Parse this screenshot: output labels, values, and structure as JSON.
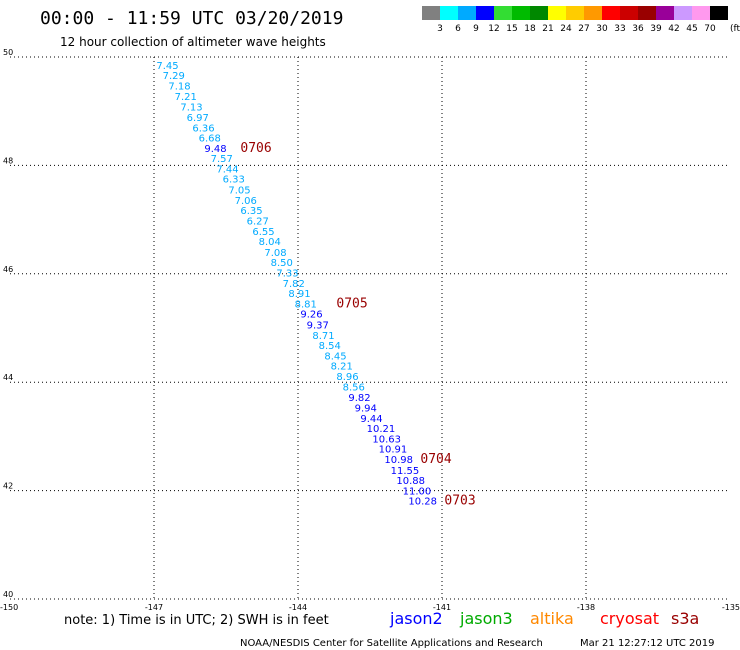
{
  "chart_data": {
    "type": "scatter",
    "title": "00:00 - 11:59 UTC 03/20/2019",
    "subtitle": "12 hour collection of altimeter wave heights",
    "x_ticks": [
      "-150",
      "-147",
      "-144",
      "-141",
      "-138",
      "-135"
    ],
    "y_ticks": [
      "40",
      "42",
      "44",
      "46",
      "48",
      "50"
    ],
    "xlim": [
      -150,
      -135
    ],
    "ylim": [
      40,
      50
    ],
    "grid": true,
    "color_scale": {
      "labels": [
        "3",
        "6",
        "9",
        "12",
        "15",
        "18",
        "21",
        "24",
        "27",
        "30",
        "33",
        "36",
        "39",
        "42",
        "45",
        "70"
      ],
      "unit": "(ft)",
      "colors": [
        "#808080",
        "#00ffff",
        "#00aaff",
        "#0000ff",
        "#33dd33",
        "#00bb00",
        "#008800",
        "#ffff00",
        "#ffcc00",
        "#ff9900",
        "#ff0000",
        "#cc0000",
        "#990000",
        "#990099",
        "#cc99ff",
        "#ff99ee",
        "#000000"
      ]
    },
    "series": [
      {
        "name": "jason2",
        "color": "#0000ff",
        "points": []
      },
      {
        "name": "jason3",
        "color": "#00aa00",
        "points": []
      },
      {
        "name": "altika",
        "color": "#ff8800",
        "points": []
      },
      {
        "name": "cryosat",
        "color": "#ff0000",
        "points": []
      },
      {
        "name": "s3a",
        "color": "#990000",
        "points": [
          {
            "lon": -146.95,
            "lat": 49.78,
            "label": "7.45",
            "c": "#00aaff"
          },
          {
            "lon": -146.82,
            "lat": 49.59,
            "label": "7.29",
            "c": "#00aaff"
          },
          {
            "lon": -146.7,
            "lat": 49.4,
            "label": "7.18",
            "c": "#00aaff"
          },
          {
            "lon": -146.57,
            "lat": 49.21,
            "label": "7.21",
            "c": "#00aaff"
          },
          {
            "lon": -146.45,
            "lat": 49.01,
            "label": "7.13",
            "c": "#00aaff"
          },
          {
            "lon": -146.32,
            "lat": 48.82,
            "label": "6.97",
            "c": "#00aaff"
          },
          {
            "lon": -146.2,
            "lat": 48.63,
            "label": "6.36",
            "c": "#00aaff"
          },
          {
            "lon": -146.07,
            "lat": 48.44,
            "label": "6.68",
            "c": "#00aaff"
          },
          {
            "lon": -145.95,
            "lat": 48.25,
            "label": "9.48",
            "c": "#0000ff"
          },
          {
            "lon": -145.82,
            "lat": 48.06,
            "label": "7.57",
            "c": "#00aaff"
          },
          {
            "lon": -145.7,
            "lat": 47.87,
            "label": "7.44",
            "c": "#00aaff"
          },
          {
            "lon": -145.57,
            "lat": 47.68,
            "label": "6.33",
            "c": "#00aaff"
          },
          {
            "lon": -145.45,
            "lat": 47.48,
            "label": "7.05",
            "c": "#00aaff"
          },
          {
            "lon": -145.32,
            "lat": 47.29,
            "label": "7.06",
            "c": "#00aaff"
          },
          {
            "lon": -145.2,
            "lat": 47.1,
            "label": "6.35",
            "c": "#00aaff"
          },
          {
            "lon": -145.07,
            "lat": 46.91,
            "label": "6.27",
            "c": "#00aaff"
          },
          {
            "lon": -144.95,
            "lat": 46.72,
            "label": "6.55",
            "c": "#00aaff"
          },
          {
            "lon": -144.82,
            "lat": 46.53,
            "label": "8.04",
            "c": "#00aaff"
          },
          {
            "lon": -144.7,
            "lat": 46.33,
            "label": "7.08",
            "c": "#00aaff"
          },
          {
            "lon": -144.57,
            "lat": 46.14,
            "label": "8.50",
            "c": "#00aaff"
          },
          {
            "lon": -144.45,
            "lat": 45.95,
            "label": "7.33",
            "c": "#00aaff"
          },
          {
            "lon": -144.32,
            "lat": 45.76,
            "label": "7.82",
            "c": "#00aaff"
          },
          {
            "lon": -144.2,
            "lat": 45.57,
            "label": "8.91",
            "c": "#00aaff"
          },
          {
            "lon": -144.07,
            "lat": 45.38,
            "label": "8.81",
            "c": "#00aaff"
          },
          {
            "lon": -143.95,
            "lat": 45.19,
            "label": "9.26",
            "c": "#0000ff"
          },
          {
            "lon": -143.82,
            "lat": 44.99,
            "label": "9.37",
            "c": "#0000ff"
          },
          {
            "lon": -143.7,
            "lat": 44.8,
            "label": "8.71",
            "c": "#00aaff"
          },
          {
            "lon": -143.57,
            "lat": 44.61,
            "label": "8.54",
            "c": "#00aaff"
          },
          {
            "lon": -143.45,
            "lat": 44.42,
            "label": "8.45",
            "c": "#00aaff"
          },
          {
            "lon": -143.32,
            "lat": 44.23,
            "label": "8.21",
            "c": "#00aaff"
          },
          {
            "lon": -143.2,
            "lat": 44.04,
            "label": "8.96",
            "c": "#00aaff"
          },
          {
            "lon": -143.07,
            "lat": 43.85,
            "label": "8.56",
            "c": "#00aaff"
          },
          {
            "lon": -142.95,
            "lat": 43.65,
            "label": "9.82",
            "c": "#0000ff"
          },
          {
            "lon": -142.82,
            "lat": 43.46,
            "label": "9.94",
            "c": "#0000ff"
          },
          {
            "lon": -142.7,
            "lat": 43.27,
            "label": "9.44",
            "c": "#0000ff"
          },
          {
            "lon": -142.57,
            "lat": 43.08,
            "label": "10.21",
            "c": "#0000ff"
          },
          {
            "lon": -142.45,
            "lat": 42.89,
            "label": "10.63",
            "c": "#0000ff"
          },
          {
            "lon": -142.32,
            "lat": 42.7,
            "label": "10.91",
            "c": "#0000ff"
          },
          {
            "lon": -142.2,
            "lat": 42.51,
            "label": "10.98",
            "c": "#0000ff"
          },
          {
            "lon": -142.07,
            "lat": 42.31,
            "label": "11.55",
            "c": "#0000ff"
          },
          {
            "lon": -141.95,
            "lat": 42.12,
            "label": "10.88",
            "c": "#0000ff"
          },
          {
            "lon": -141.82,
            "lat": 41.93,
            "label": "11.00",
            "c": "#0000ff"
          },
          {
            "lon": -141.7,
            "lat": 41.74,
            "label": "10.28",
            "c": "#0000ff"
          }
        ]
      }
    ],
    "time_annotations": [
      {
        "label": "0706",
        "lon": -145.2,
        "lat": 48.25
      },
      {
        "label": "0705",
        "lon": -143.2,
        "lat": 45.38
      },
      {
        "label": "0704",
        "lon": -141.45,
        "lat": 42.51
      },
      {
        "label": "0703",
        "lon": -140.95,
        "lat": 41.74
      }
    ]
  },
  "legend_labels": [
    {
      "text": "jason2",
      "color": "#0000ff"
    },
    {
      "text": "jason3",
      "color": "#00aa00"
    },
    {
      "text": "altika",
      "color": "#ff8800"
    },
    {
      "text": "cryosat",
      "color": "#ff0000"
    },
    {
      "text": "s3a",
      "color": "#990000"
    }
  ],
  "note": "note: 1) Time is in UTC; 2) SWH is in feet",
  "credit": "NOAA/NESDIS Center for Satellite Applications and Research",
  "timestamp": "Mar 21 12:27:12 UTC 2019"
}
